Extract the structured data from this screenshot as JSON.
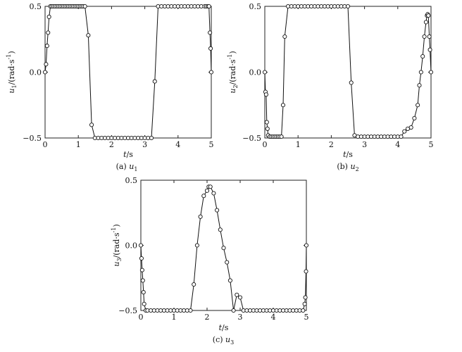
{
  "chart_data": [
    {
      "type": "line",
      "caption_prefix": "(a) ",
      "caption_var": "u",
      "caption_sub": "1",
      "ylabel_var": "u",
      "ylabel_sub": "1",
      "ylabel_unit": "/(rad·s",
      "ylabel_exp": "-1",
      "ylabel_close": ")",
      "xlabel_var": "t",
      "xlabel_unit": "/s",
      "xlim": [
        0,
        5
      ],
      "ylim": [
        -0.5,
        0.5
      ],
      "xticks": [
        "0",
        "1",
        "2",
        "3",
        "4",
        "5"
      ],
      "yticks": [
        "−0.5",
        "0.0",
        "0.5"
      ],
      "x": [
        0,
        0.03,
        0.06,
        0.09,
        0.12,
        0.16,
        0.2,
        0.25,
        0.3,
        0.35,
        0.4,
        0.45,
        0.5,
        0.55,
        0.6,
        0.65,
        0.7,
        0.75,
        0.8,
        0.85,
        0.9,
        0.95,
        1.0,
        1.05,
        1.1,
        1.15,
        1.2,
        1.3,
        1.4,
        1.5,
        1.6,
        1.7,
        1.8,
        1.9,
        2.0,
        2.1,
        2.2,
        2.3,
        2.4,
        2.5,
        2.6,
        2.7,
        2.8,
        2.9,
        3.0,
        3.1,
        3.2,
        3.3,
        3.4,
        3.5,
        3.6,
        3.7,
        3.8,
        3.9,
        4.0,
        4.1,
        4.2,
        4.3,
        4.4,
        4.5,
        4.6,
        4.7,
        4.8,
        4.85,
        4.9,
        4.93,
        4.96,
        4.98,
        5.0
      ],
      "y": [
        0,
        0.06,
        0.2,
        0.3,
        0.42,
        0.5,
        0.5,
        0.5,
        0.5,
        0.5,
        0.5,
        0.5,
        0.5,
        0.5,
        0.5,
        0.5,
        0.5,
        0.5,
        0.5,
        0.5,
        0.5,
        0.5,
        0.5,
        0.5,
        0.5,
        0.5,
        0.5,
        0.28,
        -0.4,
        -0.5,
        -0.5,
        -0.5,
        -0.5,
        -0.5,
        -0.5,
        -0.5,
        -0.5,
        -0.5,
        -0.5,
        -0.5,
        -0.5,
        -0.5,
        -0.5,
        -0.5,
        -0.5,
        -0.5,
        -0.5,
        -0.07,
        0.5,
        0.5,
        0.5,
        0.5,
        0.5,
        0.5,
        0.5,
        0.5,
        0.5,
        0.5,
        0.5,
        0.5,
        0.5,
        0.5,
        0.5,
        0.5,
        0.5,
        0.5,
        0.3,
        0.18,
        0
      ]
    },
    {
      "type": "line",
      "caption_prefix": "(b) ",
      "caption_var": "u",
      "caption_sub": "2",
      "ylabel_var": "u",
      "ylabel_sub": "2",
      "ylabel_unit": "/(rad·s",
      "ylabel_exp": "-1",
      "ylabel_close": ")",
      "xlabel_var": "t",
      "xlabel_unit": "/s",
      "xlim": [
        0,
        5
      ],
      "ylim": [
        -0.5,
        0.5
      ],
      "xticks": [
        "0",
        "1",
        "2",
        "3",
        "4",
        "5"
      ],
      "yticks": [
        "−0.5",
        "0.0",
        "0.5"
      ],
      "x": [
        0,
        0.02,
        0.04,
        0.06,
        0.08,
        0.1,
        0.15,
        0.2,
        0.25,
        0.3,
        0.35,
        0.4,
        0.45,
        0.5,
        0.55,
        0.6,
        0.7,
        0.8,
        0.9,
        1.0,
        1.1,
        1.2,
        1.3,
        1.4,
        1.5,
        1.6,
        1.7,
        1.8,
        1.9,
        2.0,
        2.1,
        2.2,
        2.3,
        2.4,
        2.5,
        2.6,
        2.7,
        2.8,
        2.9,
        3.0,
        3.1,
        3.2,
        3.3,
        3.4,
        3.5,
        3.6,
        3.7,
        3.8,
        3.9,
        4.0,
        4.1,
        4.2,
        4.3,
        4.4,
        4.5,
        4.6,
        4.65,
        4.7,
        4.75,
        4.8,
        4.85,
        4.88,
        4.9,
        4.92,
        4.95,
        4.97,
        5.0
      ],
      "y": [
        0,
        -0.15,
        -0.17,
        -0.38,
        -0.43,
        -0.48,
        -0.49,
        -0.49,
        -0.49,
        -0.49,
        -0.49,
        -0.49,
        -0.49,
        -0.49,
        -0.25,
        0.27,
        0.5,
        0.5,
        0.5,
        0.5,
        0.5,
        0.5,
        0.5,
        0.5,
        0.5,
        0.5,
        0.5,
        0.5,
        0.5,
        0.5,
        0.5,
        0.5,
        0.5,
        0.5,
        0.5,
        -0.08,
        -0.48,
        -0.49,
        -0.49,
        -0.49,
        -0.49,
        -0.49,
        -0.49,
        -0.49,
        -0.49,
        -0.49,
        -0.49,
        -0.49,
        -0.49,
        -0.49,
        -0.49,
        -0.45,
        -0.43,
        -0.42,
        -0.35,
        -0.25,
        -0.1,
        0.0,
        0.12,
        0.27,
        0.38,
        0.43,
        0.44,
        0.43,
        0.27,
        0.17,
        0.0
      ]
    },
    {
      "type": "line",
      "caption_prefix": "(c) ",
      "caption_var": "u",
      "caption_sub": "3",
      "ylabel_var": "u",
      "ylabel_sub": "3",
      "ylabel_unit": "/(rad·s",
      "ylabel_exp": "-1",
      "ylabel_close": ")",
      "xlabel_var": "t",
      "xlabel_unit": "/s",
      "xlim": [
        0,
        5
      ],
      "ylim": [
        -0.5,
        0.5
      ],
      "xticks": [
        "0",
        "1",
        "2",
        "3",
        "4",
        "5"
      ],
      "yticks": [
        "−0.5",
        "0.0",
        "0.5"
      ],
      "x": [
        0,
        0.02,
        0.04,
        0.06,
        0.08,
        0.1,
        0.15,
        0.2,
        0.3,
        0.4,
        0.5,
        0.6,
        0.7,
        0.8,
        0.9,
        1.0,
        1.1,
        1.2,
        1.3,
        1.4,
        1.5,
        1.6,
        1.7,
        1.8,
        1.9,
        2.0,
        2.05,
        2.1,
        2.2,
        2.3,
        2.4,
        2.5,
        2.6,
        2.7,
        2.8,
        2.9,
        3.0,
        3.1,
        3.2,
        3.3,
        3.4,
        3.5,
        3.6,
        3.7,
        3.8,
        3.9,
        4.0,
        4.1,
        4.2,
        4.3,
        4.4,
        4.5,
        4.6,
        4.7,
        4.8,
        4.9,
        4.95,
        4.97,
        4.99,
        5.0
      ],
      "y": [
        0,
        -0.1,
        -0.19,
        -0.27,
        -0.36,
        -0.45,
        -0.5,
        -0.5,
        -0.5,
        -0.5,
        -0.5,
        -0.5,
        -0.5,
        -0.5,
        -0.5,
        -0.5,
        -0.5,
        -0.5,
        -0.5,
        -0.5,
        -0.5,
        -0.3,
        0.0,
        0.22,
        0.38,
        0.42,
        0.45,
        0.45,
        0.4,
        0.27,
        0.12,
        -0.02,
        -0.13,
        -0.27,
        -0.5,
        -0.38,
        -0.4,
        -0.5,
        -0.5,
        -0.5,
        -0.5,
        -0.5,
        -0.5,
        -0.5,
        -0.5,
        -0.5,
        -0.5,
        -0.5,
        -0.5,
        -0.5,
        -0.5,
        -0.5,
        -0.5,
        -0.5,
        -0.5,
        -0.5,
        -0.45,
        -0.4,
        -0.2,
        0.0
      ]
    }
  ]
}
